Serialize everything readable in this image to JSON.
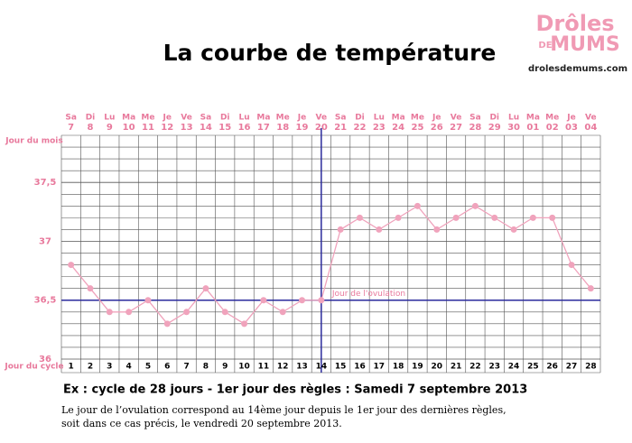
{
  "chart_data": {
    "type": "line",
    "title": "La courbe de température",
    "categories": [
      1,
      2,
      3,
      4,
      5,
      6,
      7,
      8,
      9,
      10,
      11,
      12,
      13,
      14,
      15,
      16,
      17,
      18,
      19,
      20,
      21,
      22,
      23,
      24,
      25,
      26,
      27,
      28
    ],
    "weekdays": [
      "Sa",
      "Di",
      "Lu",
      "Ma",
      "Me",
      "Je",
      "Ve",
      "Sa",
      "Di",
      "Lu",
      "Ma",
      "Me",
      "Je",
      "Ve",
      "Sa",
      "Di",
      "Lu",
      "Ma",
      "Me",
      "Je",
      "Ve",
      "Sa",
      "Di",
      "Lu",
      "Ma",
      "Me",
      "Je",
      "Ve"
    ],
    "dates": [
      "7",
      "8",
      "9",
      "10",
      "11",
      "12",
      "13",
      "14",
      "15",
      "16",
      "17",
      "18",
      "19",
      "20",
      "21",
      "22",
      "23",
      "24",
      "25",
      "26",
      "27",
      "28",
      "29",
      "30",
      "01",
      "02",
      "03",
      "04"
    ],
    "values": [
      36.8,
      36.6,
      36.4,
      36.4,
      36.5,
      36.3,
      36.4,
      36.6,
      36.4,
      36.3,
      36.5,
      36.4,
      36.5,
      36.5,
      37.1,
      37.2,
      37.1,
      37.2,
      37.3,
      37.1,
      37.2,
      37.3,
      37.2,
      37.1,
      37.2,
      37.2,
      36.8,
      36.6
    ],
    "color": "#f0a3bc",
    "ylim": [
      36,
      37.9
    ],
    "yticks": [
      36,
      {
        "value": 36.5,
        "label": "36,5"
      },
      37,
      {
        "value": 37.5,
        "label": "37,5"
      }
    ],
    "minor_yticks": [
      36.1,
      36.2,
      36.3,
      36.4,
      36.6,
      36.7,
      36.8,
      36.9,
      37.1,
      37.2,
      37.3,
      37.4,
      37.6,
      37.7,
      37.8
    ],
    "grid": true,
    "row_labels": {
      "month": "Jour du mois",
      "cycle": "Jour du cycle"
    },
    "coverline": 36.5,
    "ovulation": {
      "day": 14,
      "label": "Jour de l'ovulation"
    }
  },
  "logo": {
    "line1": "Drôles",
    "line2a": "DE",
    "line2b": "MUMS",
    "url": "drolesdemums.com"
  },
  "caption": "Ex : cycle de 28 jours - 1er jour des règles : Samedi 7 septembre 2013",
  "note_lines": [
    "Le jour de l’ovulation correspond au 14ème jour depuis le 1er jour des dernières règles,",
    "soit dans ce cas précis, le vendredi 20 septembre 2013."
  ]
}
